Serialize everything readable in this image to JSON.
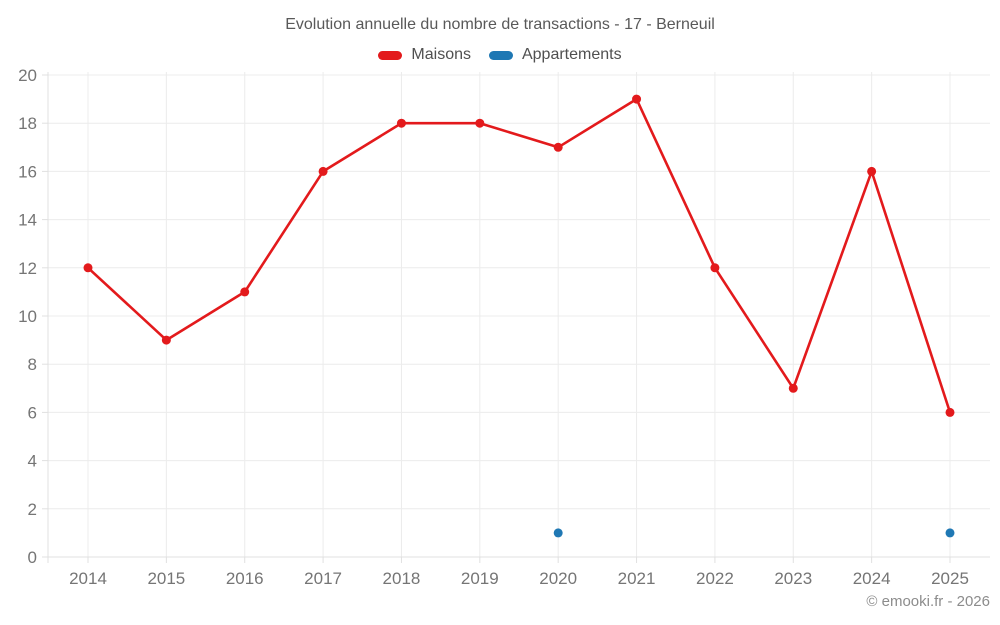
{
  "title": "Evolution annuelle du nombre de transactions - 17 - Berneuil",
  "footer": "© emooki.fr - 2026",
  "legend": [
    {
      "label": "Maisons",
      "color": "#e31a1c"
    },
    {
      "label": "Appartements",
      "color": "#1f78b4"
    }
  ],
  "colors": {
    "maisons": "#e31a1c",
    "appartements": "#1f78b4",
    "grid": "#ececec",
    "axis": "#e0e0e0",
    "tick_label": "#757575",
    "title_text": "#595959",
    "footer_text": "#8c8c8c",
    "background": "#ffffff"
  },
  "chart_data": {
    "type": "line",
    "categories": [
      "2014",
      "2015",
      "2016",
      "2017",
      "2018",
      "2019",
      "2020",
      "2021",
      "2022",
      "2023",
      "2024",
      "2025"
    ],
    "series": [
      {
        "name": "Maisons",
        "color": "#e31a1c",
        "values": [
          12,
          9,
          11,
          16,
          18,
          18,
          17,
          19,
          12,
          7,
          16,
          6
        ]
      },
      {
        "name": "Appartements",
        "color": "#1f78b4",
        "values": [
          null,
          null,
          null,
          null,
          null,
          null,
          1,
          null,
          null,
          null,
          null,
          1
        ]
      }
    ],
    "title": "Evolution annuelle du nombre de transactions - 17 - Berneuil",
    "xlabel": "",
    "ylabel": "",
    "ylim": [
      0,
      20
    ],
    "ytick_step": 2,
    "yticks": [
      0,
      2,
      4,
      6,
      8,
      10,
      12,
      14,
      16,
      18,
      20
    ],
    "grid": true,
    "legend_position": "top"
  }
}
